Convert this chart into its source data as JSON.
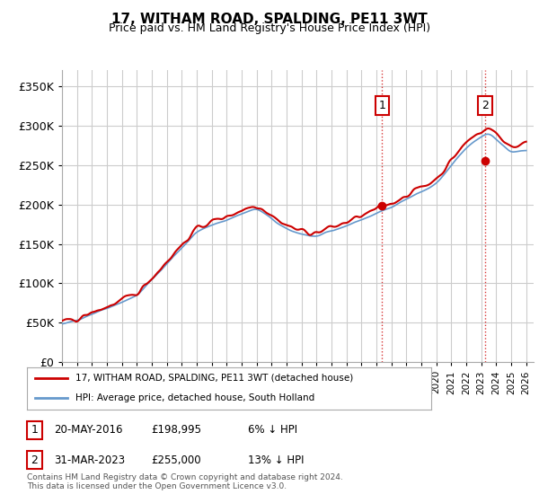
{
  "title": "17, WITHAM ROAD, SPALDING, PE11 3WT",
  "subtitle": "Price paid vs. HM Land Registry's House Price Index (HPI)",
  "ylabel_ticks": [
    "£0",
    "£50K",
    "£100K",
    "£150K",
    "£200K",
    "£250K",
    "£300K",
    "£350K"
  ],
  "ylim": [
    0,
    370000
  ],
  "xlim_start": 1995.0,
  "xlim_end": 2026.5,
  "hpi_color": "#6699cc",
  "price_color": "#cc0000",
  "dashed_line_color": "#cc0000",
  "dashed_line_style": ":",
  "grid_color": "#cccccc",
  "background_color": "#ffffff",
  "sale1_x": 2016.38,
  "sale1_y": 198995,
  "sale2_x": 2023.25,
  "sale2_y": 255000,
  "legend_line1": "17, WITHAM ROAD, SPALDING, PE11 3WT (detached house)",
  "legend_line2": "HPI: Average price, detached house, South Holland",
  "annotation1_label": "1",
  "annotation1_text": "20-MAY-2016    £198,995    6% ↓ HPI",
  "annotation2_label": "2",
  "annotation2_text": "31-MAR-2023    £255,000    13% ↓ HPI",
  "footer": "Contains HM Land Registry data © Crown copyright and database right 2024.\nThis data is licensed under the Open Government Licence v3.0."
}
